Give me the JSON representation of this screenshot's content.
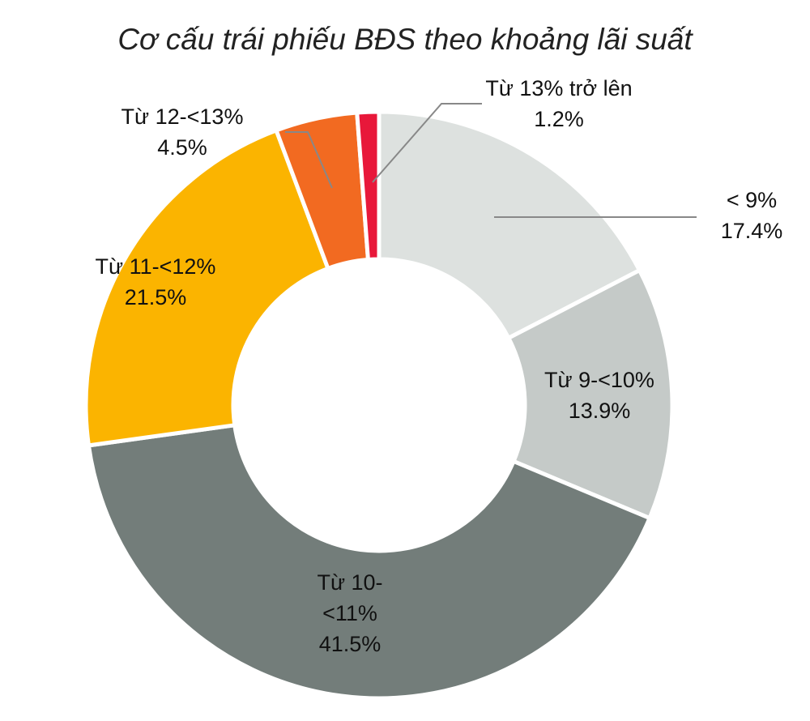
{
  "chart_data": {
    "type": "donut",
    "title": "Cơ cấu trái phiếu BĐS theo khoảng lãi suất",
    "categories": [
      "< 9%",
      "Từ 9-<10%",
      "Từ 10-<11%",
      "Từ 11-<12%",
      "Từ 12-<13%",
      "Từ 13% trở lên"
    ],
    "values": [
      17.4,
      13.9,
      41.5,
      21.5,
      4.5,
      1.2
    ],
    "value_labels": [
      "17.4%",
      "13.9%",
      "41.5%",
      "21.5%",
      "4.5%",
      "1.2%"
    ],
    "colors": [
      "#dde1df",
      "#c5cac8",
      "#737d7a",
      "#fbb400",
      "#f26a21",
      "#e8183a"
    ]
  }
}
